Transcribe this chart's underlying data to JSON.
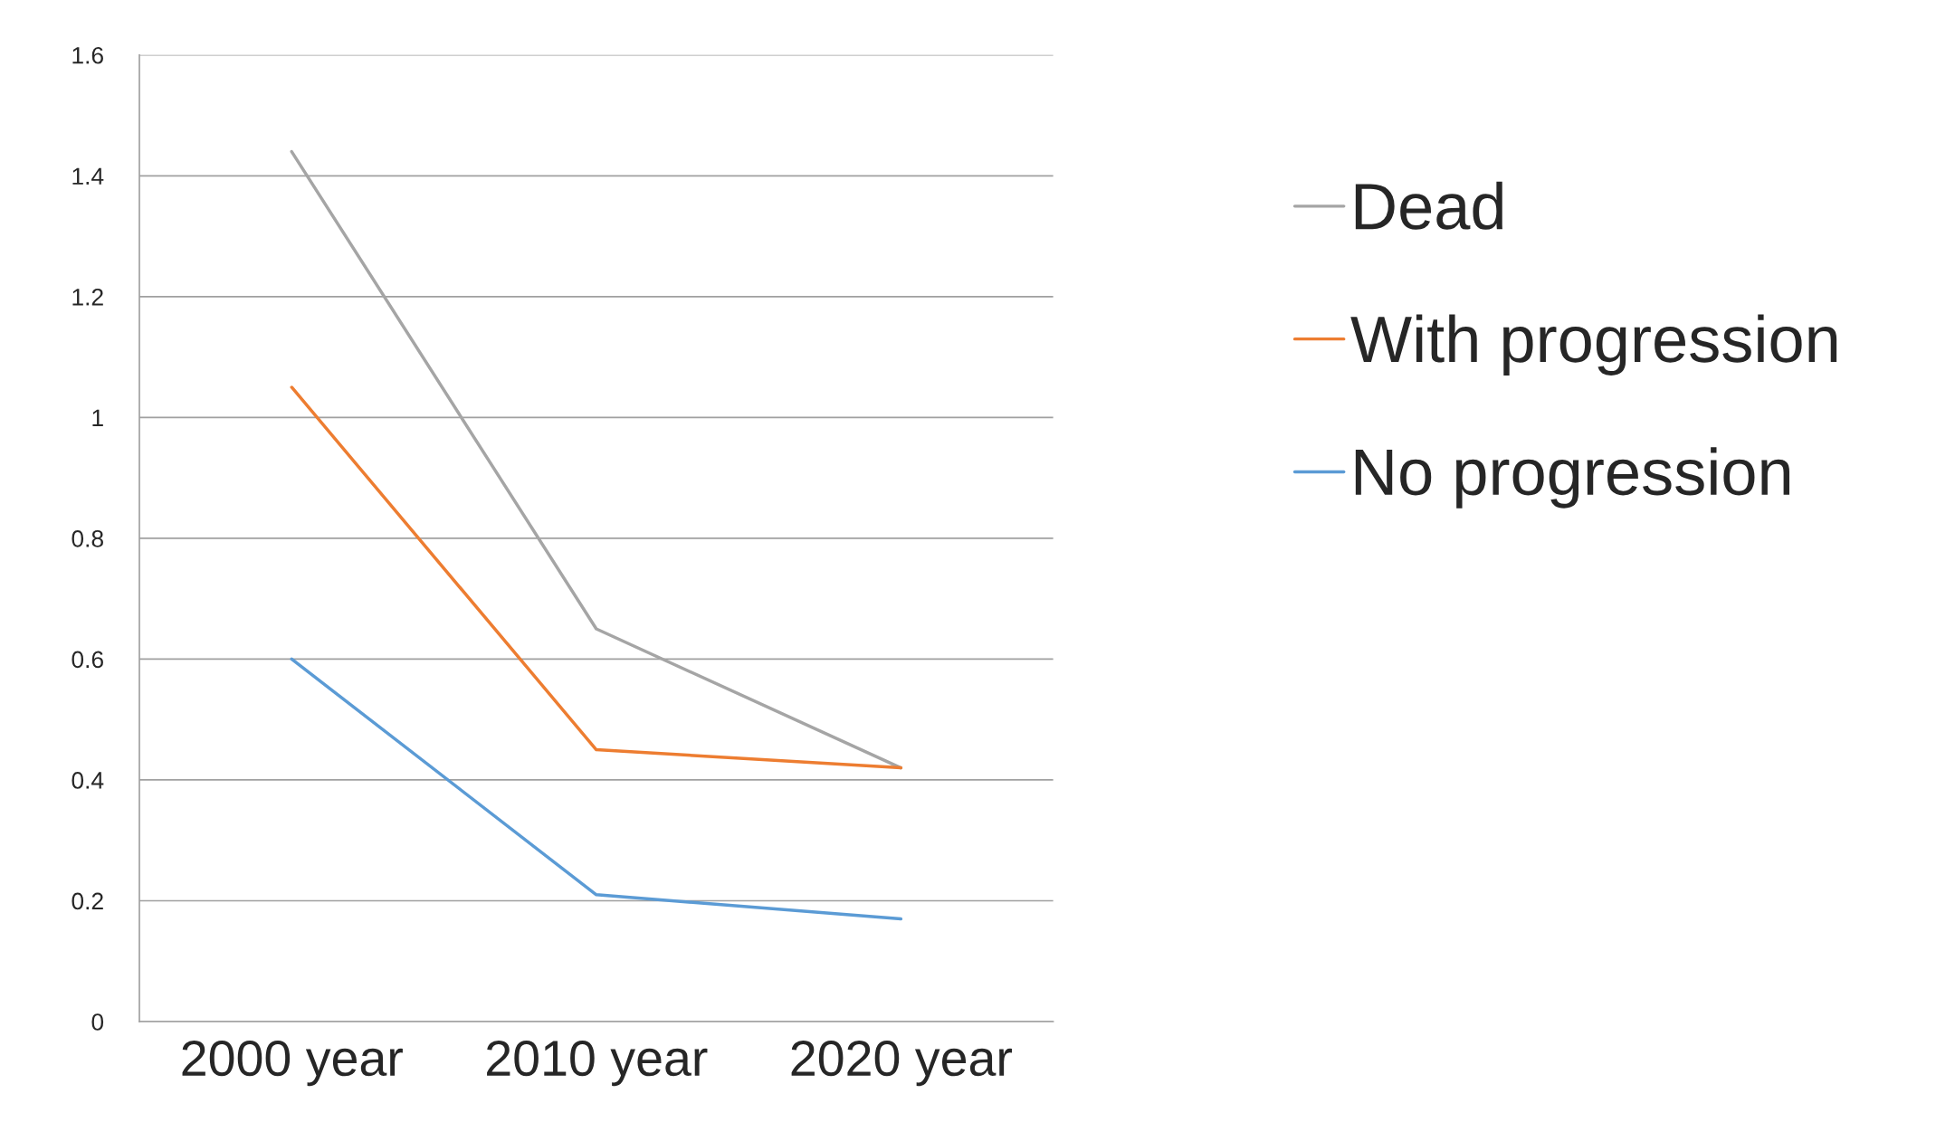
{
  "chart_data": {
    "type": "line",
    "categories": [
      "2000 year",
      "2010 year",
      "2020 year"
    ],
    "series": [
      {
        "name": "Dead",
        "color": "#a5a5a5",
        "values": [
          1.44,
          0.65,
          0.42
        ]
      },
      {
        "name": "With progression",
        "color": "#ed7d31",
        "values": [
          1.05,
          0.45,
          0.42
        ]
      },
      {
        "name": "No progression",
        "color": "#5b9bd5",
        "values": [
          0.6,
          0.21,
          0.17
        ]
      }
    ],
    "ylim": [
      0,
      1.6
    ],
    "yticks": [
      0,
      0.2,
      0.4,
      0.6,
      0.8,
      1,
      1.2,
      1.4,
      1.6
    ],
    "grid": "y",
    "legend": "right",
    "marker": "none",
    "line_style": "solid"
  }
}
